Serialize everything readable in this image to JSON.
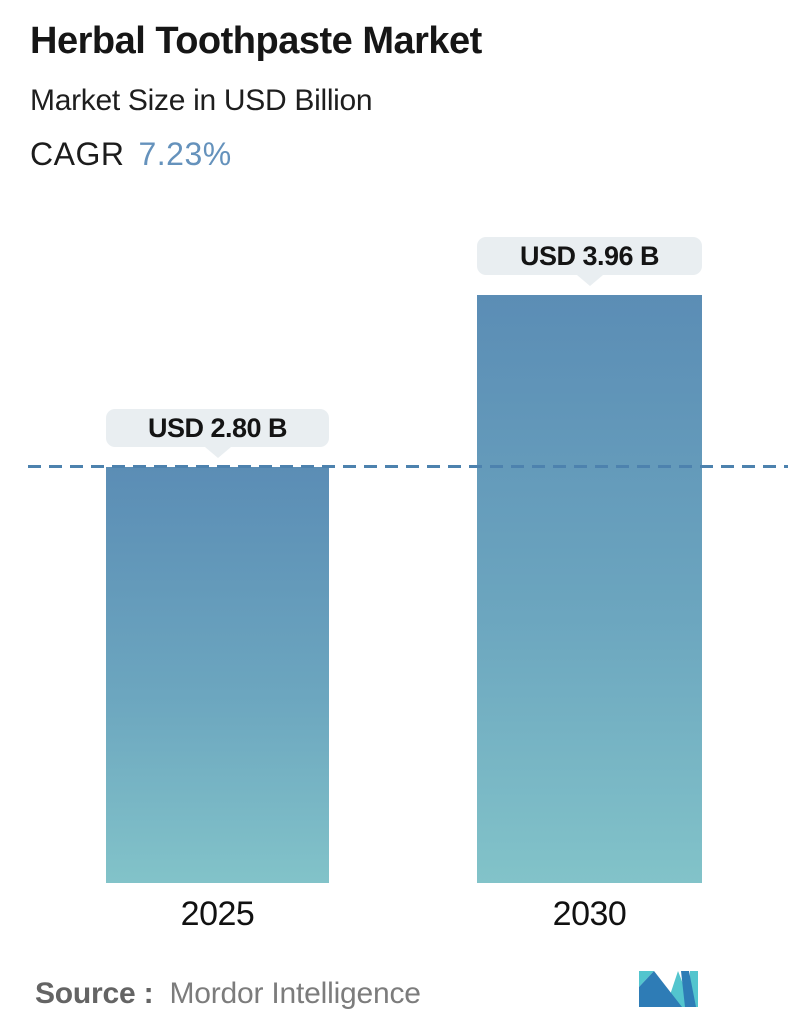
{
  "header": {
    "title": "Herbal Toothpaste Market",
    "subtitle": "Market Size in USD Billion",
    "cagr_label": "CAGR",
    "cagr_value": "7.23%"
  },
  "chart_data": {
    "type": "bar",
    "title": "Herbal Toothpaste Market",
    "subtitle": "Market Size in USD Billion",
    "unit": "USD Billion",
    "cagr_percent": 7.23,
    "categories": [
      "2025",
      "2030"
    ],
    "values": [
      2.8,
      3.96
    ],
    "value_labels": [
      "USD 2.80 B",
      "USD 3.96 B"
    ],
    "reference_line": {
      "value": 2.8,
      "style": "dashed",
      "color": "#4d82ae"
    },
    "ylim": [
      0,
      3.96
    ],
    "grid": false,
    "legend": false,
    "colors": {
      "bar_top": "#5b8db5",
      "bar_bottom": "#82c3c9",
      "label_bubble_bg": "#e9eef1",
      "accent_blue": "#6592bc"
    }
  },
  "footer": {
    "source_label": "Source :",
    "source_value": "Mordor Intelligence",
    "logo_name": "mordor-intelligence-logo"
  }
}
